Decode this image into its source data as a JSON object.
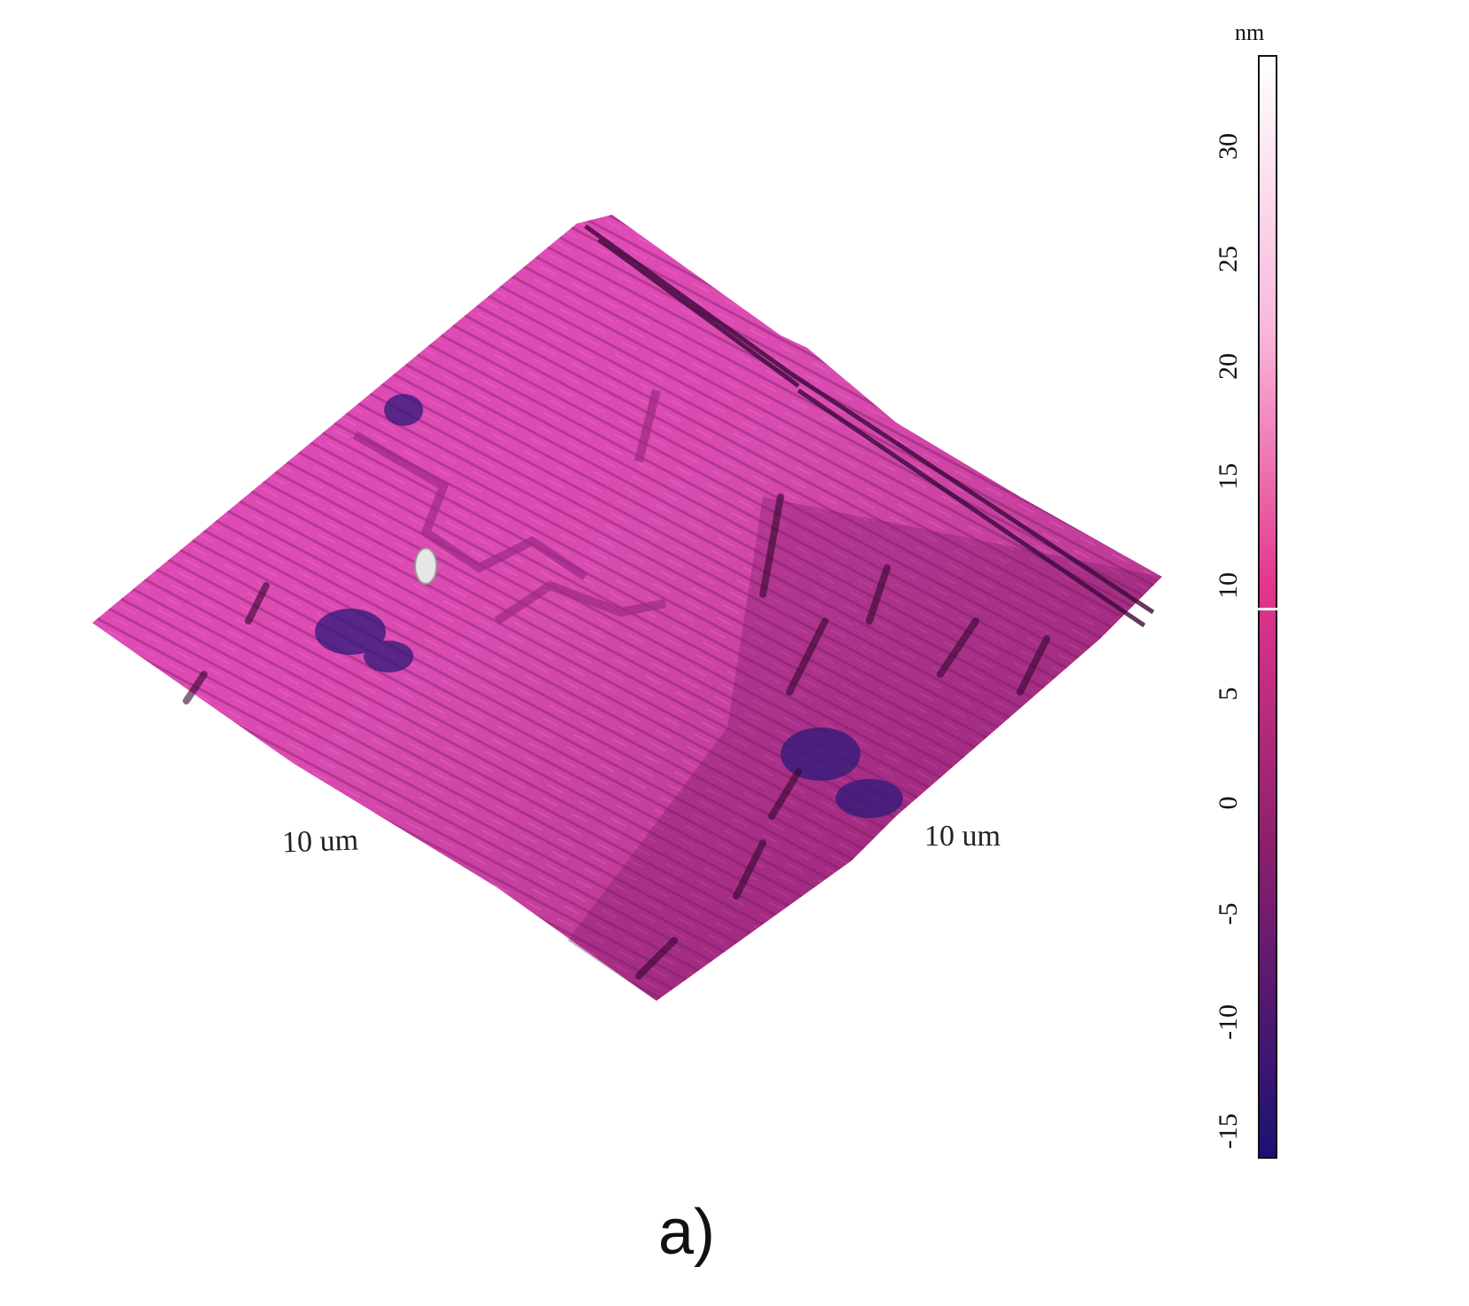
{
  "image": {
    "axis_labels": {
      "left": "10 um",
      "right": "10 um"
    },
    "colorbar": {
      "unit": "nm",
      "ticks": [
        "30",
        "25",
        "20",
        "15",
        "10",
        "5",
        "0",
        "-5",
        "-10",
        "-15"
      ],
      "colors": {
        "top": "#ffffff",
        "upper": "#f9b7da",
        "middle": "#e3368c",
        "lower": "#8b1f6d",
        "bottom": "#1a1273"
      }
    },
    "panel_label": "a)"
  }
}
